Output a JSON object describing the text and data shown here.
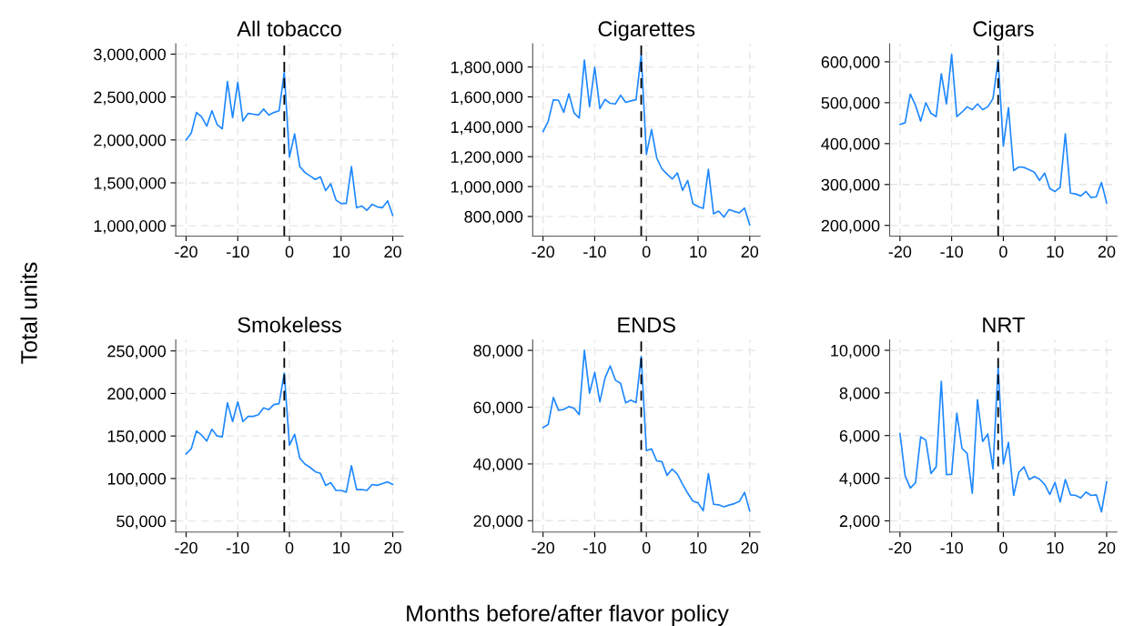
{
  "chart_data": [
    {
      "type": "line",
      "title": "All tobacco",
      "ylabel": "Total units",
      "x": [
        -20,
        -19,
        -18,
        -17,
        -16,
        -15,
        -14,
        -13,
        -12,
        -11,
        -10,
        -9,
        -8,
        -7,
        -6,
        -5,
        -4,
        -3,
        -2,
        -1,
        0,
        1,
        2,
        3,
        4,
        5,
        6,
        7,
        8,
        9,
        10,
        11,
        12,
        13,
        14,
        15,
        16,
        17,
        18,
        19,
        20
      ],
      "series": [
        {
          "color": "#1e88ff",
          "values": [
            2000000,
            2080000,
            2320000,
            2270000,
            2160000,
            2340000,
            2180000,
            2130000,
            2680000,
            2260000,
            2670000,
            2220000,
            2310000,
            2300000,
            2290000,
            2360000,
            2290000,
            2320000,
            2340000,
            2790000,
            1800000,
            2070000,
            1690000,
            1620000,
            1580000,
            1540000,
            1570000,
            1410000,
            1490000,
            1300000,
            1260000,
            1260000,
            1690000,
            1210000,
            1230000,
            1180000,
            1250000,
            1220000,
            1210000,
            1290000,
            1120000
          ]
        }
      ],
      "xlim": [
        -22,
        22
      ],
      "xticks": [
        -20,
        -10,
        0,
        10,
        20
      ],
      "ylim": [
        880000,
        3120000
      ],
      "yticks": [
        {
          "value": 1000000,
          "label": "1,000,000"
        },
        {
          "value": 1500000,
          "label": "1,500,000"
        },
        {
          "value": 2000000,
          "label": "2,000,000"
        },
        {
          "value": 2500000,
          "label": "2,500,000"
        },
        {
          "value": 3000000,
          "label": "3,000,000"
        }
      ],
      "ref_lines": [
        {
          "axis": "x",
          "value": -1,
          "color": "#000000",
          "line_style": "dashed"
        }
      ],
      "grid": true,
      "line_style": "solid",
      "marker": "none"
    },
    {
      "type": "line",
      "title": "Cigarettes",
      "x": [
        -20,
        -19,
        -18,
        -17,
        -16,
        -15,
        -14,
        -13,
        -12,
        -11,
        -10,
        -9,
        -8,
        -7,
        -6,
        -5,
        -4,
        -3,
        -2,
        -1,
        0,
        1,
        2,
        3,
        4,
        5,
        6,
        7,
        8,
        9,
        10,
        11,
        12,
        13,
        14,
        15,
        16,
        17,
        18,
        19,
        20
      ],
      "series": [
        {
          "color": "#1e88ff",
          "values": [
            1368000,
            1437000,
            1581000,
            1577000,
            1497000,
            1621000,
            1493000,
            1459000,
            1846000,
            1533000,
            1798000,
            1521000,
            1583000,
            1557000,
            1553000,
            1611000,
            1563000,
            1573000,
            1581000,
            1884000,
            1216000,
            1382000,
            1192000,
            1119000,
            1083000,
            1051000,
            1091000,
            975000,
            1041000,
            886000,
            866000,
            854000,
            1115000,
            818000,
            836000,
            796000,
            846000,
            834000,
            824000,
            856000,
            744000
          ]
        }
      ],
      "xlim": [
        -22,
        22
      ],
      "xticks": [
        -20,
        -10,
        0,
        10,
        20
      ],
      "ylim": [
        669000,
        1955000
      ],
      "yticks": [
        {
          "value": 800000,
          "label": "800,000"
        },
        {
          "value": 1000000,
          "label": "1,000,000"
        },
        {
          "value": 1200000,
          "label": "1,200,000"
        },
        {
          "value": 1400000,
          "label": "1,400,000"
        },
        {
          "value": 1600000,
          "label": "1,600,000"
        },
        {
          "value": 1800000,
          "label": "1,800,000"
        }
      ],
      "ref_lines": [
        {
          "axis": "x",
          "value": -1,
          "color": "#000000",
          "line_style": "dashed"
        }
      ],
      "grid": true,
      "line_style": "solid",
      "marker": "none"
    },
    {
      "type": "line",
      "title": "Cigars",
      "x": [
        -20,
        -19,
        -18,
        -17,
        -16,
        -15,
        -14,
        -13,
        -12,
        -11,
        -10,
        -9,
        -8,
        -7,
        -6,
        -5,
        -4,
        -3,
        -2,
        -1,
        0,
        1,
        2,
        3,
        4,
        5,
        6,
        7,
        8,
        9,
        10,
        11,
        12,
        13,
        14,
        15,
        16,
        17,
        18,
        19,
        20
      ],
      "series": [
        {
          "color": "#1e88ff",
          "values": [
            447000,
            451000,
            521000,
            494000,
            455000,
            500000,
            474000,
            466000,
            571000,
            497000,
            618000,
            466000,
            477000,
            490000,
            483000,
            497000,
            483000,
            490000,
            510000,
            604000,
            394000,
            488000,
            334000,
            343000,
            342000,
            336000,
            330000,
            310000,
            328000,
            290000,
            283000,
            293000,
            424000,
            279000,
            277000,
            272000,
            283000,
            268000,
            270000,
            305000,
            255000
          ]
        }
      ],
      "xlim": [
        -22,
        22
      ],
      "xticks": [
        -20,
        -10,
        0,
        10,
        20
      ],
      "ylim": [
        174000,
        644000
      ],
      "yticks": [
        {
          "value": 200000,
          "label": "200,000"
        },
        {
          "value": 300000,
          "label": "300,000"
        },
        {
          "value": 400000,
          "label": "400,000"
        },
        {
          "value": 500000,
          "label": "500,000"
        },
        {
          "value": 600000,
          "label": "600,000"
        }
      ],
      "ref_lines": [
        {
          "axis": "x",
          "value": -1,
          "color": "#000000",
          "line_style": "dashed"
        }
      ],
      "grid": true,
      "line_style": "solid",
      "marker": "none"
    },
    {
      "type": "line",
      "title": "Smokeless",
      "x": [
        -20,
        -19,
        -18,
        -17,
        -16,
        -15,
        -14,
        -13,
        -12,
        -11,
        -10,
        -9,
        -8,
        -7,
        -6,
        -5,
        -4,
        -3,
        -2,
        -1,
        0,
        1,
        2,
        3,
        4,
        5,
        6,
        7,
        8,
        9,
        10,
        11,
        12,
        13,
        14,
        15,
        16,
        17,
        18,
        19,
        20
      ],
      "series": [
        {
          "color": "#1e88ff",
          "values": [
            129000,
            135000,
            156000,
            151000,
            144000,
            158000,
            150000,
            149000,
            189000,
            167000,
            190000,
            167000,
            173000,
            173000,
            175000,
            183000,
            181000,
            187000,
            188000,
            224000,
            139000,
            152000,
            124000,
            117000,
            113000,
            108000,
            106000,
            92000,
            95000,
            86000,
            86000,
            84000,
            115000,
            87000,
            87000,
            86000,
            93000,
            92000,
            94000,
            96000,
            93000
          ]
        }
      ],
      "xlim": [
        -22,
        22
      ],
      "xticks": [
        -20,
        -10,
        0,
        10,
        20
      ],
      "ylim": [
        37000,
        263000
      ],
      "yticks": [
        {
          "value": 50000,
          "label": "50,000"
        },
        {
          "value": 100000,
          "label": "100,000"
        },
        {
          "value": 150000,
          "label": "150,000"
        },
        {
          "value": 200000,
          "label": "200,000"
        },
        {
          "value": 250000,
          "label": "250,000"
        }
      ],
      "ref_lines": [
        {
          "axis": "x",
          "value": -1,
          "color": "#000000",
          "line_style": "dashed"
        }
      ],
      "grid": true,
      "line_style": "solid",
      "marker": "none"
    },
    {
      "type": "line",
      "title": "ENDS",
      "xlabel": "Months before/after flavor policy",
      "x": [
        -20,
        -19,
        -18,
        -17,
        -16,
        -15,
        -14,
        -13,
        -12,
        -11,
        -10,
        -9,
        -8,
        -7,
        -6,
        -5,
        -4,
        -3,
        -2,
        -1,
        0,
        1,
        2,
        3,
        4,
        5,
        6,
        7,
        8,
        9,
        10,
        11,
        12,
        13,
        14,
        15,
        16,
        17,
        18,
        19,
        20
      ],
      "series": [
        {
          "color": "#1e88ff",
          "values": [
            52800,
            53900,
            63400,
            58900,
            59200,
            60200,
            59600,
            57400,
            80000,
            64900,
            72300,
            61900,
            70300,
            74500,
            69500,
            68400,
            61500,
            62500,
            61600,
            77900,
            44700,
            45300,
            41100,
            40800,
            36000,
            38200,
            36400,
            32900,
            29700,
            26900,
            26300,
            23500,
            36600,
            25800,
            25600,
            24900,
            25500,
            26000,
            26800,
            30000,
            23500
          ]
        }
      ],
      "xlim": [
        -22,
        22
      ],
      "xticks": [
        -20,
        -10,
        0,
        10,
        20
      ],
      "ylim": [
        16000,
        83700
      ],
      "yticks": [
        {
          "value": 20000,
          "label": "20,000"
        },
        {
          "value": 40000,
          "label": "40,000"
        },
        {
          "value": 60000,
          "label": "60,000"
        },
        {
          "value": 80000,
          "label": "80,000"
        }
      ],
      "ref_lines": [
        {
          "axis": "x",
          "value": -1,
          "color": "#000000",
          "line_style": "dashed"
        }
      ],
      "grid": true,
      "line_style": "solid",
      "marker": "none"
    },
    {
      "type": "line",
      "title": "NRT",
      "x": [
        -20,
        -19,
        -18,
        -17,
        -16,
        -15,
        -14,
        -13,
        -12,
        -11,
        -10,
        -9,
        -8,
        -7,
        -6,
        -5,
        -4,
        -3,
        -2,
        -1,
        0,
        1,
        2,
        3,
        4,
        5,
        6,
        7,
        8,
        9,
        10,
        11,
        12,
        13,
        14,
        15,
        16,
        17,
        18,
        19,
        20
      ],
      "series": [
        {
          "color": "#1e88ff",
          "values": [
            6100,
            4110,
            3540,
            3780,
            5930,
            5790,
            4220,
            4530,
            8550,
            4160,
            4190,
            7050,
            5400,
            5160,
            3290,
            7680,
            5720,
            6070,
            4430,
            9230,
            4670,
            5680,
            3190,
            4270,
            4530,
            3940,
            4080,
            3960,
            3710,
            3240,
            3800,
            2880,
            3940,
            3220,
            3190,
            3070,
            3350,
            3190,
            3220,
            2420,
            3820
          ]
        }
      ],
      "xlim": [
        -22,
        22
      ],
      "xticks": [
        -20,
        -10,
        0,
        10,
        20
      ],
      "ylim": [
        1470,
        10490
      ],
      "yticks": [
        {
          "value": 2000,
          "label": "2,000"
        },
        {
          "value": 4000,
          "label": "4,000"
        },
        {
          "value": 6000,
          "label": "6,000"
        },
        {
          "value": 8000,
          "label": "8,000"
        },
        {
          "value": 10000,
          "label": "10,000"
        }
      ],
      "ref_lines": [
        {
          "axis": "x",
          "value": -1,
          "color": "#000000",
          "line_style": "dashed"
        }
      ],
      "grid": true,
      "line_style": "solid",
      "marker": "none"
    }
  ]
}
